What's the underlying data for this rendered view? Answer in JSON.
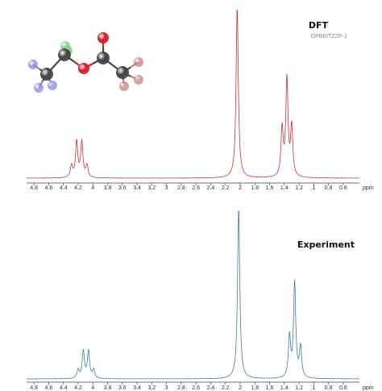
{
  "chart_data": [
    {
      "type": "line",
      "label": "DFT",
      "sublabel": "OPBE/TZ2P-J",
      "xunit": "ppm",
      "xlim": [
        4.9,
        0.38
      ],
      "x_ticks": [
        4.8,
        4.6,
        4.4,
        4.2,
        4,
        3.8,
        3.6,
        3.4,
        3.2,
        3,
        2.8,
        2.6,
        2.4,
        2.2,
        2,
        1.8,
        1.6,
        1.4,
        1.2,
        1,
        0.8,
        0.6
      ],
      "x_tick_labels": [
        "4.8",
        "4.6",
        "4.4",
        "4.2",
        "4",
        "3.8",
        "3.6",
        "3.4",
        "3.2",
        "3",
        "2.8",
        "2.6",
        "2.4",
        "2.2",
        "2",
        "1.8",
        "1.6",
        "1.4",
        "1.2",
        "1",
        "0.8",
        "0.6"
      ],
      "color": "#c8303c",
      "peaks": [
        {
          "ppm": 4.29,
          "intensity": 0.07
        },
        {
          "ppm": 4.22,
          "intensity": 0.21
        },
        {
          "ppm": 4.15,
          "intensity": 0.21
        },
        {
          "ppm": 4.08,
          "intensity": 0.07
        },
        {
          "ppm": 2.04,
          "intensity": 1.0
        },
        {
          "ppm": 1.43,
          "intensity": 0.28
        },
        {
          "ppm": 1.365,
          "intensity": 0.57
        },
        {
          "ppm": 1.3,
          "intensity": 0.29
        }
      ]
    },
    {
      "type": "line",
      "label": "Experiment",
      "xunit": "ppm",
      "xlim": [
        4.9,
        0.38
      ],
      "x_ticks": [
        4.8,
        4.6,
        4.4,
        4.2,
        4,
        3.8,
        3.6,
        3.4,
        3.2,
        3,
        2.8,
        2.6,
        2.4,
        2.2,
        2,
        1.8,
        1.6,
        1.4,
        1.2,
        1,
        0.8,
        0.6
      ],
      "x_tick_labels": [
        "4.8",
        "4.6",
        "4.4",
        "4.2",
        "4",
        "3.8",
        "3.6",
        "3.4",
        "3.2",
        "3",
        "2.8",
        "2.6",
        "2.4",
        "2.2",
        "2",
        "1.8",
        "1.6",
        "1.4",
        "1.2",
        "1",
        "0.8",
        "0.6"
      ],
      "color": "#3a7fa8",
      "peaks": [
        {
          "ppm": 4.2,
          "intensity": 0.05
        },
        {
          "ppm": 4.13,
          "intensity": 0.16
        },
        {
          "ppm": 4.06,
          "intensity": 0.16
        },
        {
          "ppm": 3.99,
          "intensity": 0.05
        },
        {
          "ppm": 2.02,
          "intensity": 1.0
        },
        {
          "ppm": 1.33,
          "intensity": 0.24
        },
        {
          "ppm": 1.26,
          "intensity": 0.56
        },
        {
          "ppm": 1.18,
          "intensity": 0.18
        }
      ]
    }
  ],
  "molecule": {
    "name": "ethyl acetate",
    "atoms": [
      {
        "id": "H_a1",
        "element": "H",
        "color": "#7e84d8"
      },
      {
        "id": "H_a2",
        "element": "H",
        "color": "#7e84d8"
      },
      {
        "id": "H_a3",
        "element": "H",
        "color": "#7e84d8"
      },
      {
        "id": "C_methyl",
        "element": "C",
        "color": "#444444"
      },
      {
        "id": "H_b1",
        "element": "H",
        "color": "#6ec86e"
      },
      {
        "id": "H_b2",
        "element": "H",
        "color": "#6ec86e"
      },
      {
        "id": "C_methylene",
        "element": "C",
        "color": "#444444"
      },
      {
        "id": "O_ester",
        "element": "O",
        "color": "#d4202a"
      },
      {
        "id": "C_carbonyl",
        "element": "C",
        "color": "#444444"
      },
      {
        "id": "O_carbonyl",
        "element": "O",
        "color": "#d4202a"
      },
      {
        "id": "C_acetyl",
        "element": "C",
        "color": "#444444"
      },
      {
        "id": "H_c1",
        "element": "H",
        "color": "#c87878"
      },
      {
        "id": "H_c2",
        "element": "H",
        "color": "#c87878"
      },
      {
        "id": "H_c3",
        "element": "H",
        "color": "#c87878"
      }
    ]
  }
}
